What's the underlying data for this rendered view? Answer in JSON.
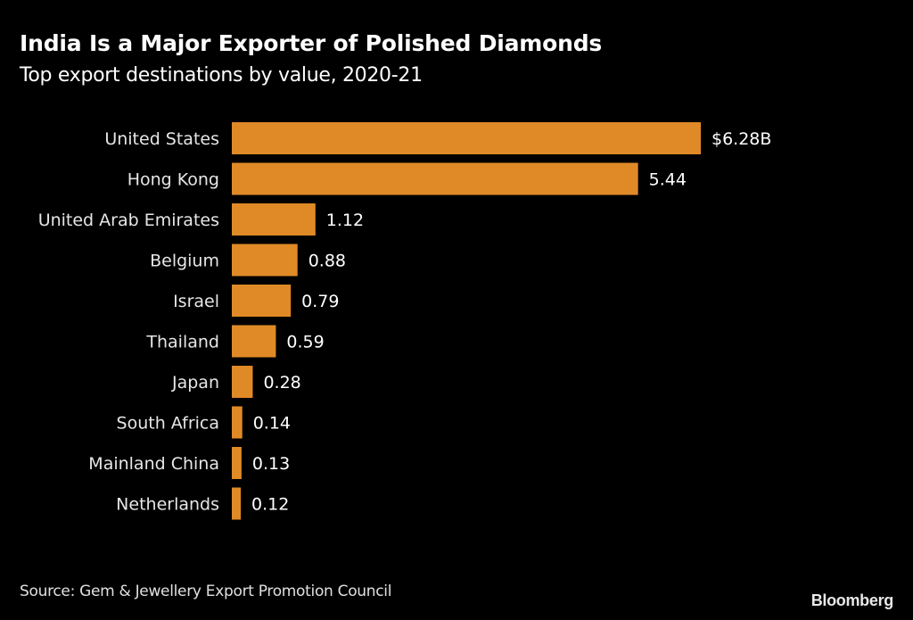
{
  "chart_data": {
    "type": "bar",
    "orientation": "horizontal",
    "title": "India Is a Major Exporter of Polished Diamonds",
    "subtitle": "Top export destinations by value, 2020-21",
    "categories": [
      "United States",
      "Hong Kong",
      "United Arab Emirates",
      "Belgium",
      "Israel",
      "Thailand",
      "Japan",
      "South Africa",
      "Mainland China",
      "Netherlands"
    ],
    "values": [
      6.28,
      5.44,
      1.12,
      0.88,
      0.79,
      0.59,
      0.28,
      0.14,
      0.13,
      0.12
    ],
    "value_labels": [
      "$6.28B",
      "5.44",
      "1.12",
      "0.88",
      "0.79",
      "0.59",
      "0.28",
      "0.14",
      "0.13",
      "0.12"
    ],
    "unit": "billion USD",
    "xlim": [
      0,
      6.28
    ],
    "xlabel": "",
    "ylabel": "",
    "grid": false,
    "legend": "none",
    "bar_color": "#e08a27",
    "background": "#000000"
  },
  "footer": {
    "source": "Source: Gem & Jewellery Export Promotion Council",
    "brand": "Bloomberg"
  }
}
